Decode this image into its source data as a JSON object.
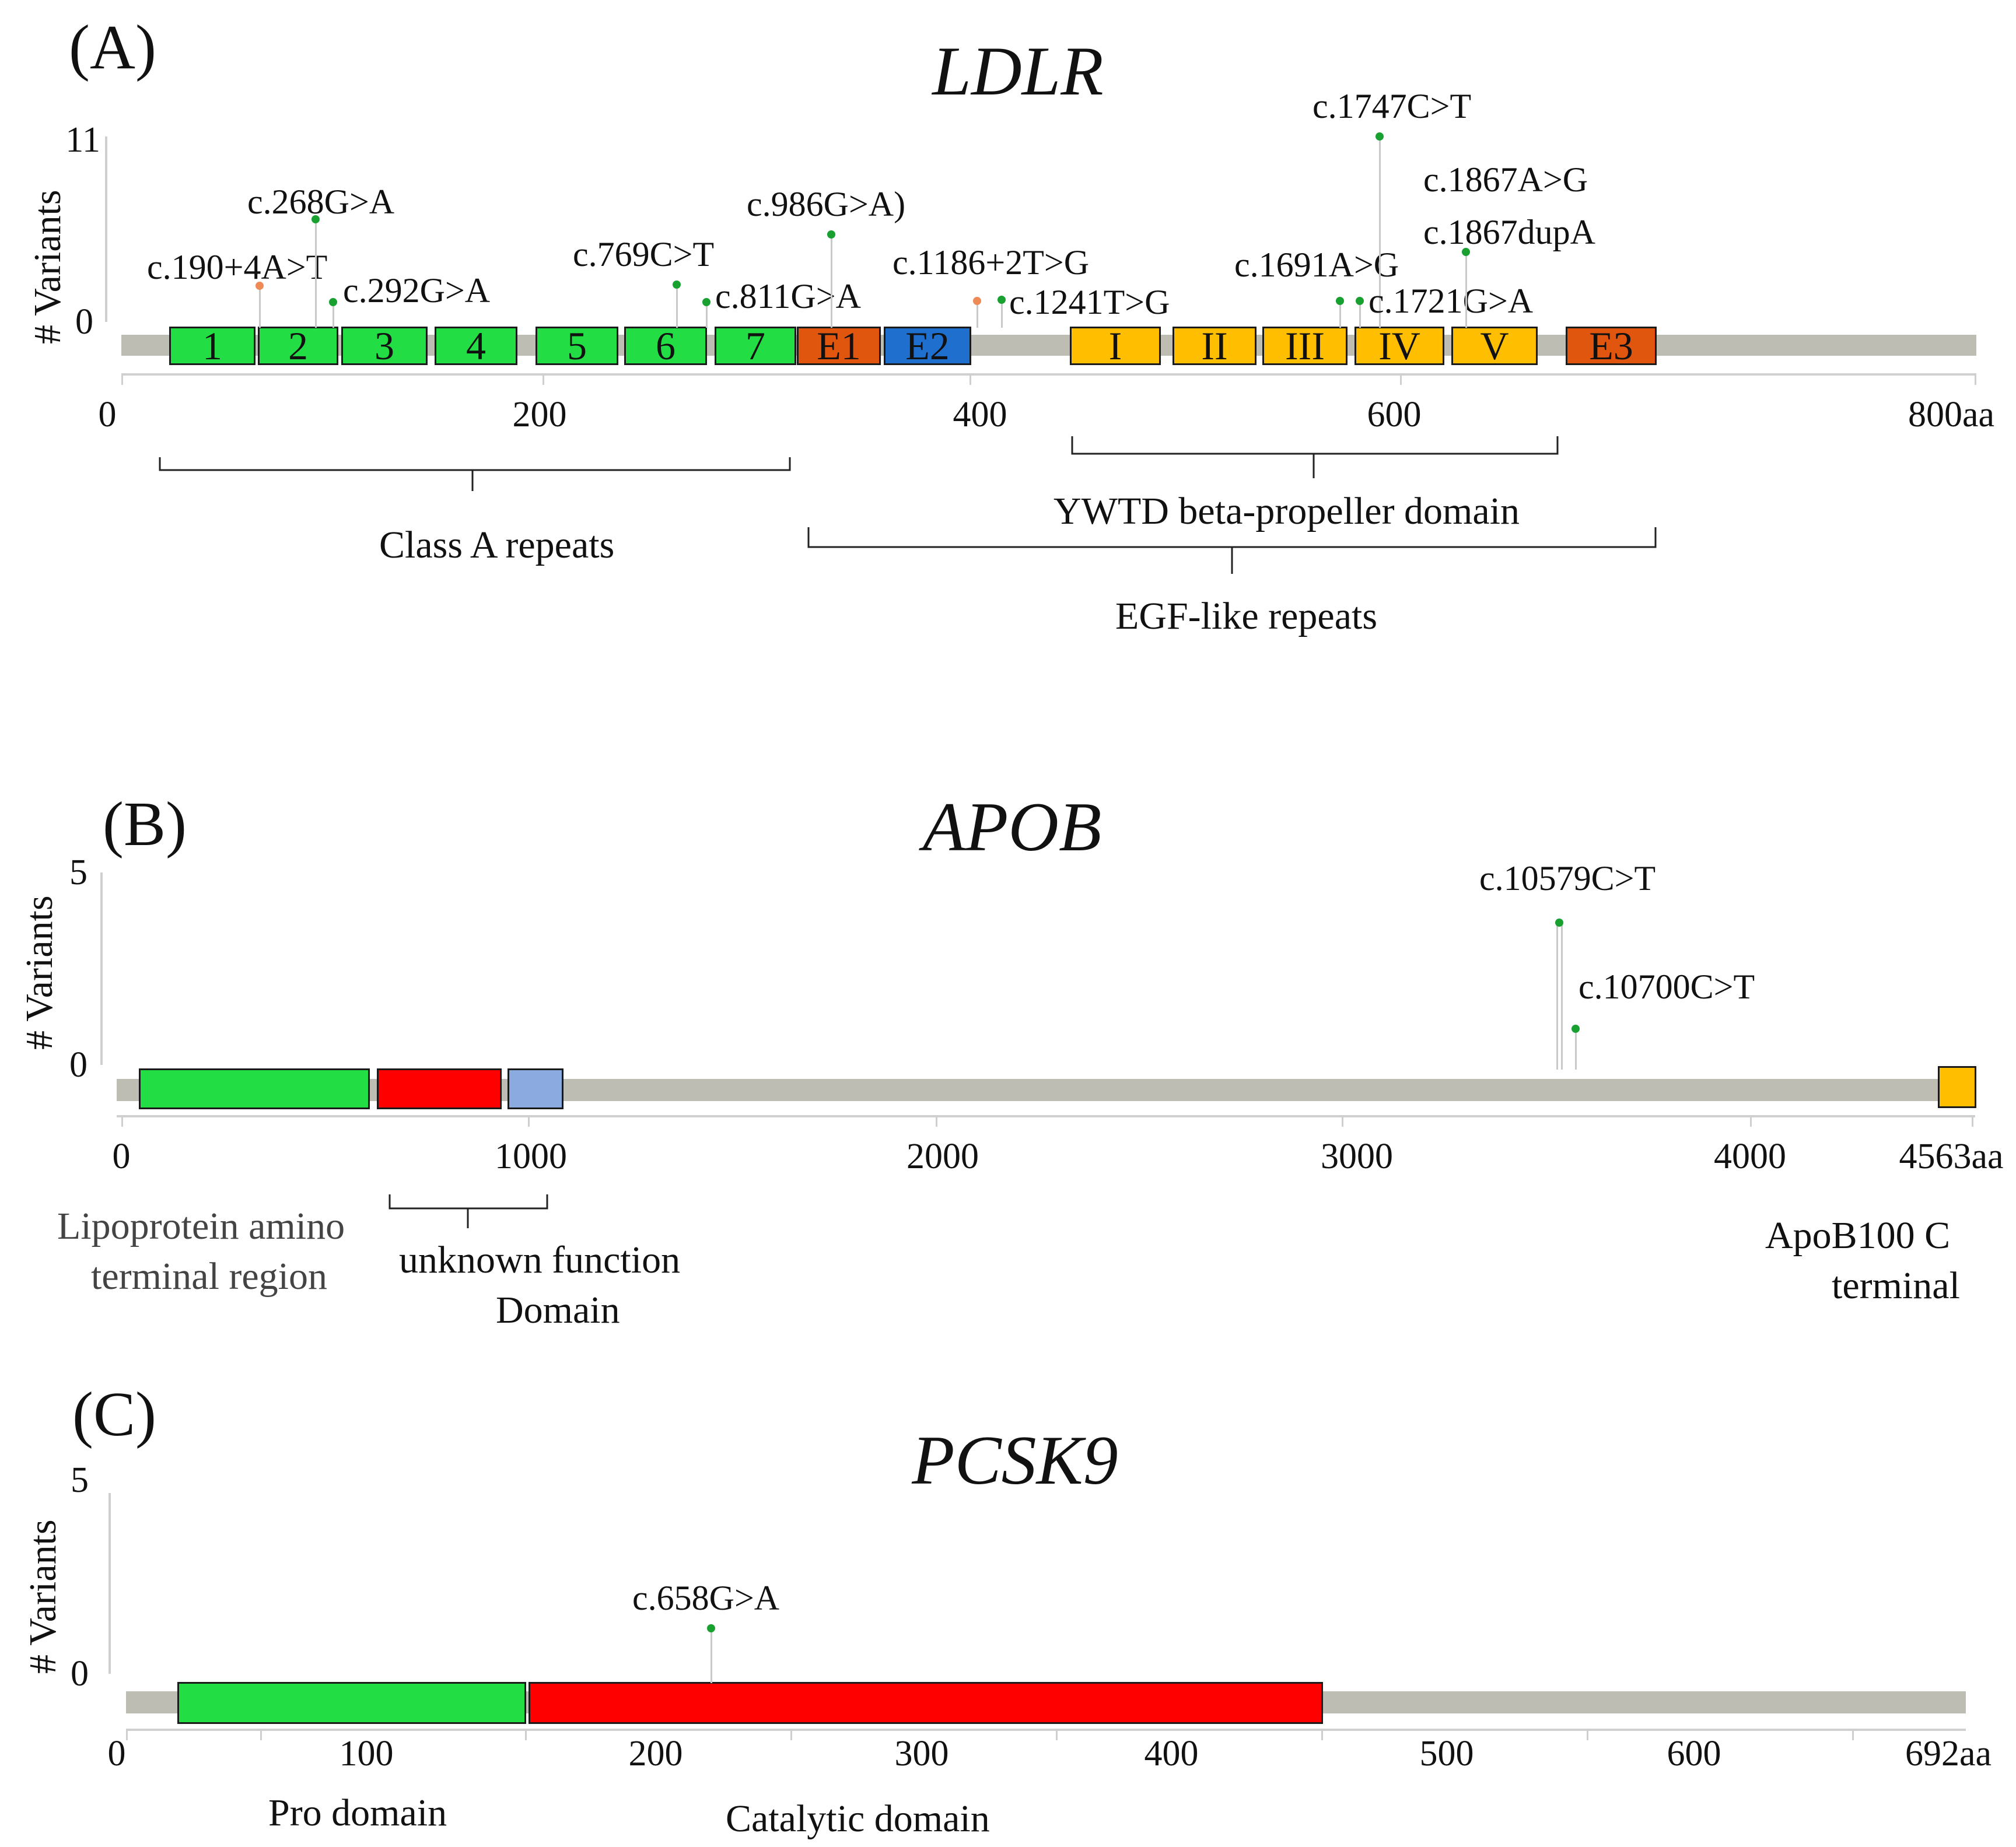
{
  "colors": {
    "green": "#22dd44",
    "orange_red": "#e0560e",
    "blue": "#1f6fcf",
    "gold": "#ffbf00",
    "red": "#ff0000",
    "light_blue": "#8aaae0",
    "track": "#bdbdb4",
    "dot_green": "#18a030",
    "dot_orange": "#ee8a55"
  },
  "panels": {
    "a": {
      "letter": "(A)",
      "gene": "LDLR",
      "yaxis_label": "# Variants",
      "ytick_max": "11",
      "ytick_min": "0",
      "xticks": [
        "0",
        "200",
        "400",
        "600",
        "800aa"
      ],
      "domains": [
        "1",
        "2",
        "3",
        "4",
        "5",
        "6",
        "7",
        "E1",
        "E2",
        "I",
        "II",
        "III",
        "IV",
        "V",
        "E3"
      ],
      "variants": [
        "c.190+4A>T",
        "c.268G>A",
        "c.292G>A",
        "c.769C>T",
        "c.811G>A",
        "c.986G>A)",
        "c.1186+2T>G",
        "c.1241T>G",
        "c.1691A>G",
        "c.1747C>T",
        "c.1721G>A",
        "c.1867A>G",
        "c.1867dupA"
      ],
      "brackets": [
        "Class A repeats",
        "YWTD beta-propeller domain",
        "EGF-like repeats"
      ]
    },
    "b": {
      "letter": "(B)",
      "gene": "APOB",
      "yaxis_label": "# Variants",
      "ytick_max": "5",
      "ytick_min": "0",
      "xticks": [
        "0",
        "1000",
        "2000",
        "3000",
        "4000",
        "4563aa"
      ],
      "variants": [
        "c.10579C>T",
        "c.10700C>T"
      ],
      "captions": {
        "lipoprotein_1": "Lipoprotein amino",
        "lipoprotein_2": "terminal region",
        "unknown_1": "unknown function",
        "unknown_2": "Domain",
        "cterm_1": "ApoB100 C",
        "cterm_2": "terminal"
      }
    },
    "c": {
      "letter": "(C)",
      "gene": "PCSK9",
      "yaxis_label": "# Variants",
      "ytick_max": "5",
      "ytick_min": "0",
      "xticks": [
        "0",
        "100",
        "200",
        "300",
        "400",
        "500",
        "600",
        "692aa"
      ],
      "variants": [
        "c.658G>A"
      ],
      "captions": {
        "pro": "Pro domain",
        "catalytic": "Catalytic domain"
      }
    }
  }
}
